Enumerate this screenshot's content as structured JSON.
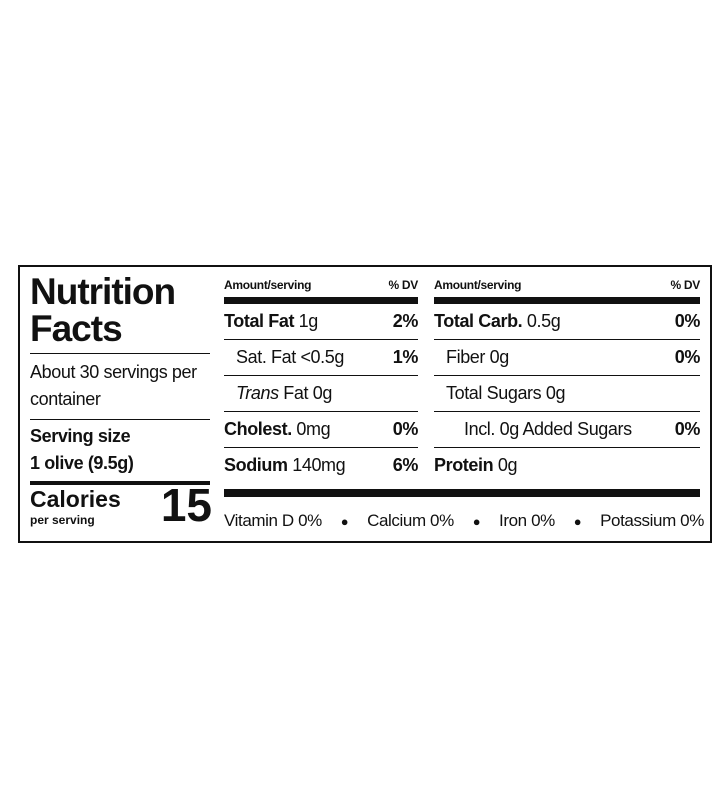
{
  "label": {
    "title": "Nutrition Facts",
    "servings": "About 30 servings per container",
    "serving_size": {
      "label": "Serving size",
      "value": "1 olive (9.5g)"
    },
    "calories": {
      "label": "Calories",
      "sublabel": "per serving",
      "value": 15
    },
    "columns": [
      {
        "header": {
          "amount": "Amount/serving",
          "dv": "% DV"
        },
        "rows": [
          {
            "label": "Total Fat",
            "amount": "1g",
            "dv": "2%"
          },
          {
            "label": "Sat. Fat",
            "amount": "<0.5g",
            "dv": "1%"
          },
          {
            "label_italic": "Trans",
            "label": "Fat",
            "amount": "0g"
          },
          {
            "label": "Cholest.",
            "amount": "0mg",
            "dv": "0%"
          },
          {
            "label": "Sodium",
            "amount": "140mg",
            "dv": "6%"
          }
        ]
      },
      {
        "header": {
          "amount": "Amount/serving",
          "dv": "% DV"
        },
        "rows": [
          {
            "label": "Total Carb.",
            "amount": "0.5g",
            "dv": "0%"
          },
          {
            "label": "Fiber",
            "amount": "0g",
            "dv": "0%"
          },
          {
            "label": "Total Sugars",
            "amount": "0g"
          },
          {
            "label": "Incl. 0g Added Sugars",
            "dv": "0%"
          },
          {
            "label": "Protein",
            "amount": "0g"
          }
        ]
      }
    ],
    "vitamins": [
      "Vitamin D 0%",
      "Calcium 0%",
      "Iron 0%",
      "Potassium 0%"
    ]
  }
}
